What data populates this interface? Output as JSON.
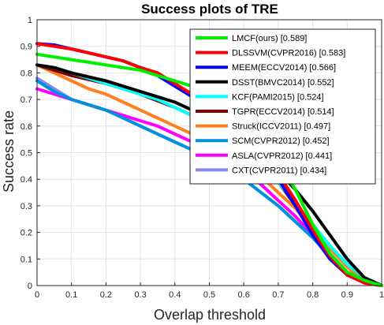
{
  "chart_data": {
    "type": "line",
    "title": "Success plots of TRE",
    "xlabel": "Overlap threshold",
    "ylabel": "Success rate",
    "xlim": [
      0,
      1
    ],
    "ylim": [
      0,
      1
    ],
    "xticks": [
      "0",
      "0.1",
      "0.2",
      "0.3",
      "0.4",
      "0.5",
      "0.6",
      "0.7",
      "0.8",
      "0.9",
      "1"
    ],
    "yticks": [
      "0",
      "0.1",
      "0.2",
      "0.3",
      "0.4",
      "0.5",
      "0.6",
      "0.7",
      "0.8",
      "0.9",
      "1"
    ],
    "grid": true,
    "legend_position": "top-right",
    "x": [
      0,
      0.05,
      0.1,
      0.15,
      0.2,
      0.25,
      0.3,
      0.35,
      0.4,
      0.45,
      0.5,
      0.55,
      0.6,
      0.65,
      0.7,
      0.75,
      0.8,
      0.85,
      0.9,
      0.95,
      1
    ],
    "series": [
      {
        "name": "LMCF(ours) [0.589]",
        "color": "#00ee00",
        "values": [
          0.87,
          0.86,
          0.85,
          0.84,
          0.83,
          0.82,
          0.81,
          0.79,
          0.77,
          0.75,
          0.72,
          0.68,
          0.63,
          0.56,
          0.47,
          0.36,
          0.23,
          0.12,
          0.05,
          0.02,
          0.0
        ]
      },
      {
        "name": "DLSSVM(CVPR2016) [0.583]",
        "color": "#ff0000",
        "values": [
          0.91,
          0.9,
          0.89,
          0.875,
          0.86,
          0.845,
          0.82,
          0.8,
          0.76,
          0.72,
          0.68,
          0.63,
          0.58,
          0.5,
          0.42,
          0.32,
          0.21,
          0.11,
          0.04,
          0.01,
          0.0
        ]
      },
      {
        "name": "MEEM(ECCV2014) [0.566]",
        "color": "#0000ff",
        "values": [
          0.91,
          0.905,
          0.89,
          0.875,
          0.86,
          0.845,
          0.82,
          0.79,
          0.75,
          0.71,
          0.67,
          0.62,
          0.56,
          0.49,
          0.4,
          0.3,
          0.19,
          0.1,
          0.04,
          0.01,
          0.0
        ]
      },
      {
        "name": "DSST(BMVC2014) [0.552]",
        "color": "#000000",
        "values": [
          0.83,
          0.82,
          0.8,
          0.785,
          0.77,
          0.75,
          0.73,
          0.71,
          0.69,
          0.66,
          0.63,
          0.59,
          0.55,
          0.49,
          0.43,
          0.36,
          0.28,
          0.19,
          0.1,
          0.03,
          0.0
        ]
      },
      {
        "name": "KCF(PAMI2015) [0.524]",
        "color": "#00ffff",
        "values": [
          0.83,
          0.82,
          0.8,
          0.78,
          0.76,
          0.74,
          0.72,
          0.7,
          0.67,
          0.64,
          0.61,
          0.57,
          0.52,
          0.46,
          0.39,
          0.31,
          0.23,
          0.15,
          0.08,
          0.03,
          0.0
        ]
      },
      {
        "name": "TGPR(ECCV2014) [0.514]",
        "color": "#800000",
        "values": [
          0.83,
          0.81,
          0.79,
          0.775,
          0.76,
          0.74,
          0.72,
          0.695,
          0.67,
          0.64,
          0.61,
          0.57,
          0.52,
          0.46,
          0.39,
          0.3,
          0.21,
          0.12,
          0.05,
          0.02,
          0.0
        ]
      },
      {
        "name": "Struck(ICCV2011) [0.497]",
        "color": "#ff8020",
        "values": [
          0.83,
          0.8,
          0.77,
          0.74,
          0.72,
          0.69,
          0.66,
          0.63,
          0.6,
          0.57,
          0.54,
          0.5,
          0.46,
          0.41,
          0.35,
          0.29,
          0.21,
          0.14,
          0.07,
          0.02,
          0.0
        ]
      },
      {
        "name": "SCM(CVPR2012) [0.452]",
        "color": "#0090dd",
        "values": [
          0.77,
          0.73,
          0.7,
          0.68,
          0.66,
          0.63,
          0.6,
          0.57,
          0.54,
          0.51,
          0.48,
          0.44,
          0.4,
          0.35,
          0.3,
          0.24,
          0.18,
          0.11,
          0.05,
          0.02,
          0.0
        ]
      },
      {
        "name": "ASLA(CVPR2012) [0.441]",
        "color": "#ff00ff",
        "values": [
          0.74,
          0.72,
          0.7,
          0.68,
          0.66,
          0.64,
          0.62,
          0.6,
          0.57,
          0.54,
          0.51,
          0.47,
          0.43,
          0.38,
          0.32,
          0.26,
          0.19,
          0.12,
          0.05,
          0.02,
          0.0
        ]
      },
      {
        "name": "CXT(CVPR2011) [0.434]",
        "color": "#8888ee",
        "values": [
          0.78,
          0.74,
          0.7,
          0.68,
          0.66,
          0.63,
          0.6,
          0.57,
          0.54,
          0.51,
          0.48,
          0.44,
          0.4,
          0.35,
          0.3,
          0.24,
          0.18,
          0.11,
          0.05,
          0.02,
          0.0
        ]
      }
    ]
  }
}
